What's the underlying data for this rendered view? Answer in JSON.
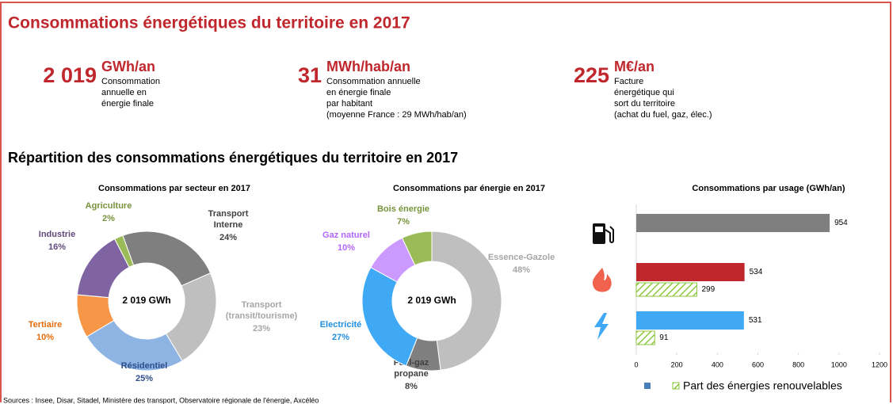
{
  "header": {
    "title": "Consommations énergétiques du territoire en 2017"
  },
  "kpis": [
    {
      "value": "2 019",
      "unit": "GWh/an",
      "desc": [
        "Consommation",
        "annuelle en",
        "énergie finale"
      ]
    },
    {
      "value": "31",
      "unit": "MWh/hab/an",
      "desc": [
        "Consommation annuelle",
        "en énergie finale",
        "par habitant",
        "(moyenne France : 29 MWh/hab/an)"
      ]
    },
    {
      "value": "225",
      "unit": "M€/an",
      "desc": [
        "Facture",
        "énergétique qui",
        "sort du territoire",
        "(achat du fuel, gaz, élec.)"
      ]
    }
  ],
  "subtitle": "Répartition des consommations énergétiques du territoire en 2017",
  "sources": "Sources : Insee, Disar, Sitadel, Ministère des transport, Observatoire régionale de l'énergie, Axcéléo",
  "chart_data": [
    {
      "type": "donut",
      "title": "Consommations par secteur en 2017",
      "center_label": "2 019 GWh",
      "categories": [
        "Transport Interne",
        "Transport (transit/tourisme)",
        "Résidentiel",
        "Tertiaire",
        "Industrie",
        "Agriculture"
      ],
      "values": [
        24,
        23,
        25,
        10,
        16,
        2
      ],
      "value_labels": [
        "24%",
        "23%",
        "25%",
        "10%",
        "16%",
        "2%"
      ],
      "colors": [
        "#7f7f7f",
        "#bfbfbf",
        "#8eb4e3",
        "#f79646",
        "#8064a2",
        "#9bbb59"
      ]
    },
    {
      "type": "donut",
      "title": "Consommations par énergie en 2017",
      "center_label": "2 019 GWh",
      "categories": [
        "Essence-Gazole",
        "Fuel-gaz propane",
        "Electricité",
        "Gaz naturel",
        "Bois énergie"
      ],
      "values": [
        48,
        8,
        27,
        10,
        7
      ],
      "value_labels": [
        "48%",
        "8%",
        "27%",
        "10%",
        "7%"
      ],
      "colors": [
        "#bfbfbf",
        "#7f7f7f",
        "#3fa9f5",
        "#cc99ff",
        "#9bbb59"
      ]
    },
    {
      "type": "hbar",
      "title": "Consommations par usage (GWh/an)",
      "categories": [
        null,
        null,
        null
      ],
      "series": [
        {
          "color": "#4a7ebb",
          "colors": [
            "#7f7f7f",
            "#c0272d",
            "#3fa9f5"
          ],
          "values": [
            954,
            534,
            531
          ]
        },
        {
          "name": "Part des énergies renouvelables",
          "color": "#8dc63f",
          "pattern": "hatch",
          "values": [
            null,
            299,
            91
          ]
        }
      ],
      "xlim": [
        0,
        1200
      ],
      "xticks": [
        0,
        200,
        400,
        600,
        800,
        1000,
        1200
      ]
    }
  ]
}
